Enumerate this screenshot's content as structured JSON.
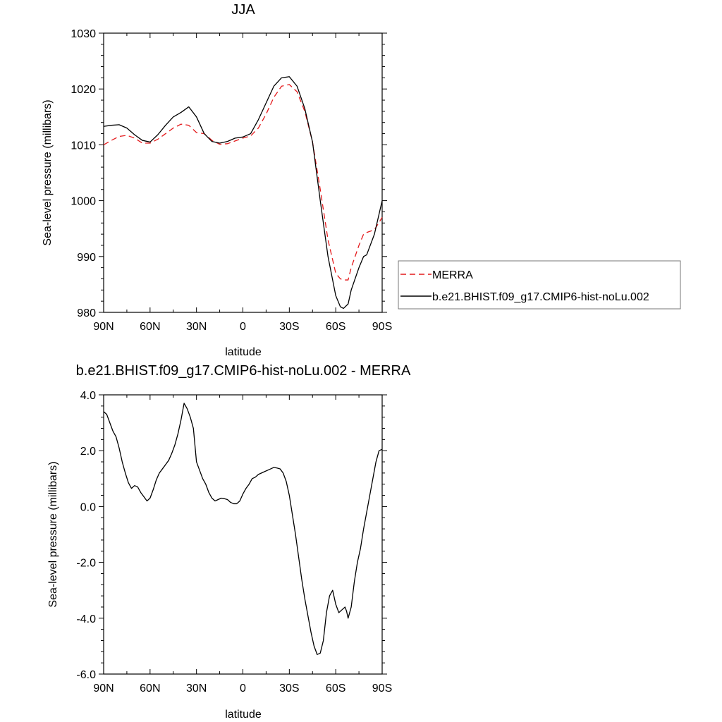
{
  "chart_data": [
    {
      "type": "line",
      "title": "JJA",
      "xlabel": "latitude",
      "ylabel": "Sea-level pressure (millibars)",
      "xlim": [
        90,
        -90
      ],
      "ylim": [
        980,
        1030
      ],
      "xticks": [
        90,
        60,
        30,
        0,
        -30,
        -60,
        -90
      ],
      "xtick_labels": [
        "90N",
        "60N",
        "30N",
        "0",
        "30S",
        "60S",
        "90S"
      ],
      "yticks": [
        980,
        990,
        1000,
        1010,
        1020,
        1030
      ],
      "ytick_labels": [
        "980",
        "990",
        "1000",
        "1010",
        "1020",
        "1030"
      ],
      "grid": false,
      "legend_position": "right",
      "series": [
        {
          "name": "MERRA",
          "color": "#e41a1c",
          "style": "dashed",
          "x": [
            90,
            85,
            80,
            75,
            70,
            65,
            60,
            55,
            50,
            45,
            40,
            35,
            30,
            25,
            20,
            15,
            10,
            5,
            0,
            -5,
            -10,
            -15,
            -20,
            -25,
            -30,
            -35,
            -40,
            -45,
            -50,
            -55,
            -60,
            -63,
            -65,
            -68,
            -70,
            -75,
            -78,
            -80,
            -85,
            -90
          ],
          "y": [
            1010,
            1010.8,
            1011.5,
            1011.7,
            1011.2,
            1010.3,
            1010.3,
            1011,
            1012,
            1013,
            1013.7,
            1013.5,
            1012.2,
            1012,
            1010.8,
            1010.1,
            1010.2,
            1010.7,
            1011.2,
            1011.6,
            1013,
            1015.5,
            1018.5,
            1020.5,
            1020.8,
            1019.5,
            1016,
            1010.5,
            1002,
            993,
            987,
            986,
            985.8,
            985.8,
            988,
            992,
            994,
            994.3,
            994.8,
            997
          ]
        },
        {
          "name": "b.e21.BHIST.f09_g17.CMIP6-hist-noLu.002",
          "color": "#000000",
          "style": "solid",
          "x": [
            90,
            85,
            80,
            75,
            70,
            65,
            60,
            55,
            50,
            45,
            40,
            35,
            30,
            25,
            20,
            15,
            10,
            5,
            0,
            -5,
            -10,
            -15,
            -20,
            -25,
            -30,
            -35,
            -40,
            -45,
            -50,
            -55,
            -60,
            -63,
            -65,
            -68,
            -70,
            -75,
            -78,
            -80,
            -85,
            -90
          ],
          "y": [
            1013.3,
            1013.5,
            1013.6,
            1013,
            1011.8,
            1010.8,
            1010.5,
            1011.8,
            1013.5,
            1015,
            1015.8,
            1016.8,
            1015,
            1012,
            1010.6,
            1010.3,
            1010.6,
            1011.2,
            1011.4,
            1012,
            1014.5,
            1017.5,
            1020.5,
            1022,
            1022.2,
            1020.5,
            1016.5,
            1010.5,
            1000,
            990,
            983,
            981,
            980.7,
            981.5,
            984,
            988,
            990,
            990.3,
            994,
            1000
          ]
        }
      ]
    },
    {
      "type": "line",
      "title": "b.e21.BHIST.f09_g17.CMIP6-hist-noLu.002 - MERRA",
      "xlabel": "latitude",
      "ylabel": "Sea-level pressure (millibars)",
      "xlim": [
        90,
        -90
      ],
      "ylim": [
        -6,
        4
      ],
      "xticks": [
        90,
        60,
        30,
        0,
        -30,
        -60,
        -90
      ],
      "xtick_labels": [
        "90N",
        "60N",
        "30N",
        "0",
        "30S",
        "60S",
        "90S"
      ],
      "yticks": [
        -6,
        -4,
        -2,
        0,
        2,
        4
      ],
      "ytick_labels": [
        "-6.0",
        "-4.0",
        "-2.0",
        "0.0",
        "2.0",
        "4.0"
      ],
      "grid": false,
      "series": [
        {
          "name": "",
          "color": "#000000",
          "style": "solid",
          "x": [
            90,
            88,
            86,
            84,
            82,
            80,
            78,
            76,
            74,
            72,
            70,
            68,
            66,
            64,
            62,
            60,
            58,
            56,
            54,
            52,
            50,
            48,
            46,
            44,
            42,
            40,
            38,
            36,
            34,
            32,
            30,
            28,
            26,
            24,
            22,
            20,
            18,
            16,
            14,
            12,
            10,
            8,
            6,
            4,
            2,
            0,
            -2,
            -4,
            -6,
            -8,
            -10,
            -12,
            -14,
            -16,
            -18,
            -20,
            -22,
            -24,
            -26,
            -28,
            -30,
            -32,
            -34,
            -36,
            -38,
            -40,
            -42,
            -44,
            -46,
            -48,
            -50,
            -52,
            -54,
            -56,
            -58,
            -60,
            -62,
            -64,
            -66,
            -67,
            -68,
            -70,
            -72,
            -74,
            -76,
            -78,
            -80,
            -82,
            -84,
            -86,
            -88,
            -90
          ],
          "y": [
            3.4,
            3.3,
            3.0,
            2.7,
            2.5,
            2.1,
            1.6,
            1.2,
            0.85,
            0.65,
            0.75,
            0.7,
            0.5,
            0.35,
            0.2,
            0.3,
            0.6,
            0.95,
            1.2,
            1.35,
            1.5,
            1.65,
            1.9,
            2.2,
            2.6,
            3.1,
            3.7,
            3.5,
            3.2,
            2.8,
            1.6,
            1.3,
            1.0,
            0.8,
            0.5,
            0.3,
            0.2,
            0.25,
            0.3,
            0.28,
            0.25,
            0.15,
            0.1,
            0.1,
            0.2,
            0.45,
            0.65,
            0.8,
            1.0,
            1.05,
            1.15,
            1.2,
            1.25,
            1.3,
            1.35,
            1.4,
            1.38,
            1.35,
            1.2,
            0.9,
            0.4,
            -0.3,
            -1.0,
            -1.8,
            -2.6,
            -3.3,
            -3.9,
            -4.5,
            -5.0,
            -5.3,
            -5.25,
            -4.8,
            -3.8,
            -3.2,
            -3.0,
            -3.5,
            -3.8,
            -3.7,
            -3.6,
            -3.75,
            -4.0,
            -3.6,
            -2.7,
            -2.0,
            -1.5,
            -0.8,
            -0.2,
            0.4,
            1.0,
            1.6,
            2.0,
            2.05
          ]
        }
      ]
    }
  ]
}
